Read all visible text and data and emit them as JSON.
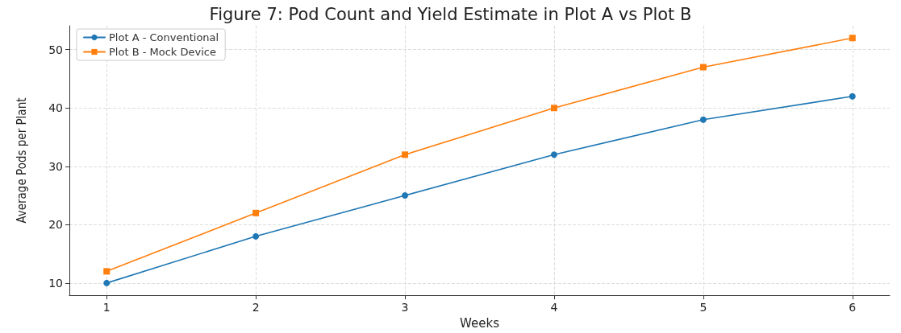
{
  "chart_data": {
    "type": "line",
    "title": "Figure 7: Pod Count and Yield Estimate in Plot A vs Plot B",
    "xlabel": "Weeks",
    "ylabel": "Average Pods per Plant",
    "x": [
      1,
      2,
      3,
      4,
      5,
      6
    ],
    "series": [
      {
        "name": "Plot A - Conventional",
        "color": "#1f77b4",
        "marker": "circle",
        "values": [
          10,
          18,
          25,
          32,
          38,
          42
        ]
      },
      {
        "name": "Plot B - Mock Device",
        "color": "#ff7f0e",
        "marker": "square",
        "values": [
          12,
          22,
          32,
          40,
          47,
          52
        ]
      }
    ],
    "xlim": [
      0.75,
      6.25
    ],
    "xticks": [
      1,
      2,
      3,
      4,
      5,
      6
    ],
    "ylim": [
      7.9,
      54.1
    ],
    "yticks": [
      10,
      20,
      30,
      40,
      50
    ],
    "grid": true,
    "legend": "top left",
    "line_style": "solid"
  }
}
